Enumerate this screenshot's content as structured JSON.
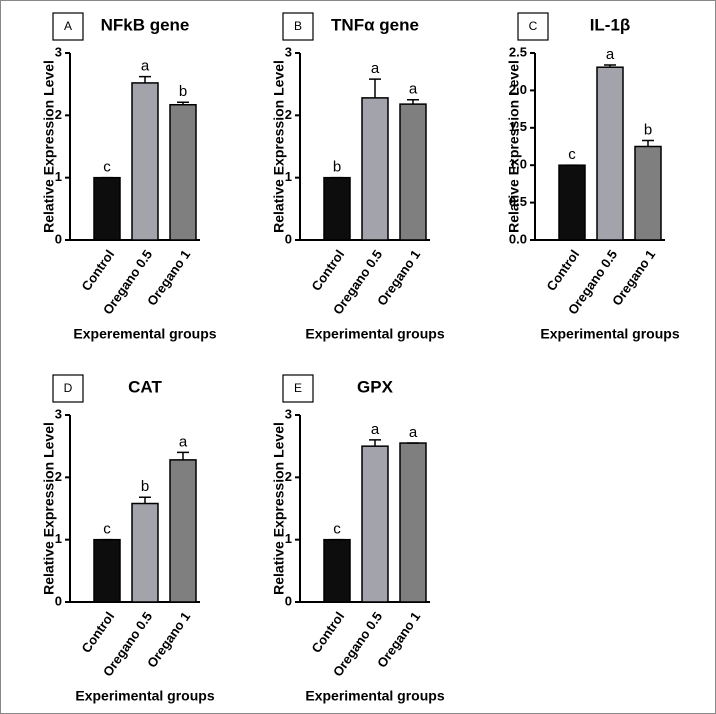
{
  "chart_data": [
    {
      "type": "bar",
      "panel": "A",
      "title": "NFkB gene",
      "ylabel": "Relative Expression Level",
      "xlabel": "Experemental groups",
      "categories": [
        "Control",
        "Oregano 0.5",
        "Oregano 1"
      ],
      "values": [
        1.0,
        2.52,
        2.17
      ],
      "errors": [
        0,
        0.1,
        0.04
      ],
      "annotations": [
        "c",
        "a",
        "b"
      ],
      "colors": [
        "#0d0d0d",
        "#a3a3ab",
        "#7f7f7f"
      ],
      "ylim": [
        0,
        3
      ],
      "yticks": [
        0,
        1,
        2,
        3
      ]
    },
    {
      "type": "bar",
      "panel": "B",
      "title": "TNFα gene",
      "ylabel": "Relative Expression Level",
      "xlabel": "Experimental groups",
      "categories": [
        "Control",
        "Oregano 0.5",
        "Oregano 1"
      ],
      "values": [
        1.0,
        2.28,
        2.18
      ],
      "errors": [
        0,
        0.3,
        0.07
      ],
      "annotations": [
        "b",
        "a",
        "a"
      ],
      "colors": [
        "#0d0d0d",
        "#a3a3ab",
        "#7f7f7f"
      ],
      "ylim": [
        0,
        3
      ],
      "yticks": [
        0,
        1,
        2,
        3
      ]
    },
    {
      "type": "bar",
      "panel": "C",
      "title": "IL-1β",
      "ylabel": "Relative Expression Level",
      "xlabel": "Experimental groups",
      "categories": [
        "Control",
        "Oregano 0.5",
        "Oregano 1"
      ],
      "values": [
        1.0,
        2.31,
        1.25
      ],
      "errors": [
        0,
        0.03,
        0.08
      ],
      "annotations": [
        "c",
        "a",
        "b"
      ],
      "colors": [
        "#0d0d0d",
        "#a3a3ab",
        "#7f7f7f"
      ],
      "ylim": [
        0,
        2.5
      ],
      "yticks": [
        {
          "value": 0,
          "label": "0.0"
        },
        0.5,
        {
          "value": 1,
          "label": "1.0"
        },
        1.5,
        {
          "value": 2,
          "label": "2.0"
        },
        2.5
      ]
    },
    {
      "type": "bar",
      "panel": "D",
      "title": "CAT",
      "ylabel": "Relative Expression Level",
      "xlabel": "Experimental groups",
      "categories": [
        "Control",
        "Oregano 0.5",
        "Oregano 1"
      ],
      "values": [
        1.0,
        1.58,
        2.28
      ],
      "errors": [
        0,
        0.1,
        0.12
      ],
      "annotations": [
        "c",
        "b",
        "a"
      ],
      "colors": [
        "#0d0d0d",
        "#a3a3ab",
        "#7f7f7f"
      ],
      "ylim": [
        0,
        3
      ],
      "yticks": [
        0,
        1,
        2,
        3
      ]
    },
    {
      "type": "bar",
      "panel": "E",
      "title": "GPX",
      "ylabel": "Relative Expression Level",
      "xlabel": "Experimental groups",
      "categories": [
        "Control",
        "Oregano 0.5",
        "Oregano 1"
      ],
      "values": [
        1.0,
        2.5,
        2.55
      ],
      "errors": [
        0,
        0.1,
        0
      ],
      "annotations": [
        "c",
        "a",
        "a"
      ],
      "colors": [
        "#0d0d0d",
        "#a3a3ab",
        "#7f7f7f"
      ],
      "ylim": [
        0,
        3
      ],
      "yticks": [
        0,
        1,
        2,
        3
      ]
    }
  ]
}
